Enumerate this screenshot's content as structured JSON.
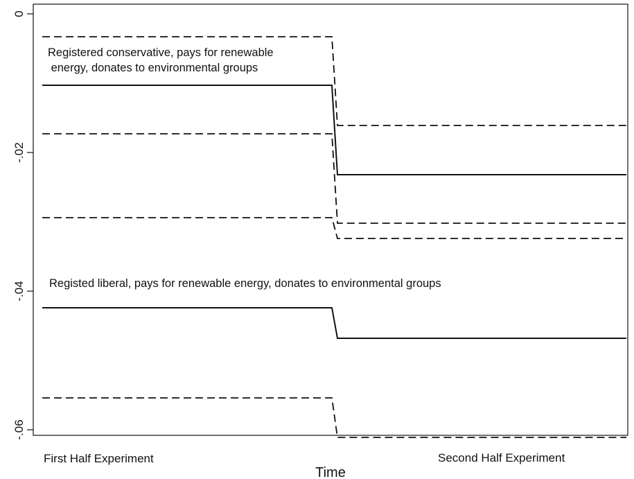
{
  "chart_data": {
    "type": "line",
    "title": "",
    "xlabel": "Time",
    "ylabel": "",
    "categories": [
      "First Half Experiment",
      "Second Half Experiment"
    ],
    "ylim": [
      -0.062,
      0.0
    ],
    "yticks": [
      {
        "value": 0,
        "label": "0"
      },
      {
        "value": -0.02,
        "label": "-.02"
      },
      {
        "value": -0.04,
        "label": "-.04"
      },
      {
        "value": -0.06,
        "label": "-.06"
      }
    ],
    "grid": false,
    "legend": "none",
    "series": [
      {
        "group": "conservative",
        "style": "solid",
        "values": [
          -0.0103,
          -0.0232
        ]
      },
      {
        "group": "conservative",
        "style": "dashed",
        "values": [
          -0.0033,
          -0.0161
        ]
      },
      {
        "group": "conservative",
        "style": "dashed",
        "values": [
          -0.0173,
          -0.0302
        ]
      },
      {
        "group": "liberal",
        "style": "solid",
        "values": [
          -0.0424,
          -0.0468
        ]
      },
      {
        "group": "liberal",
        "style": "dashed",
        "values": [
          -0.0294,
          -0.0324
        ]
      },
      {
        "group": "liberal",
        "style": "dashed",
        "values": [
          -0.0554,
          -0.0611
        ]
      }
    ],
    "annotations": [
      {
        "lines": [
          "Registered conservative, pays for renewable",
          " energy, donates to environmental groups"
        ]
      },
      {
        "lines": [
          "Registed liberal, pays for renewable energy, donates to environmental groups"
        ]
      }
    ],
    "colors": {
      "line": "#111111",
      "axis": "#111111"
    }
  }
}
